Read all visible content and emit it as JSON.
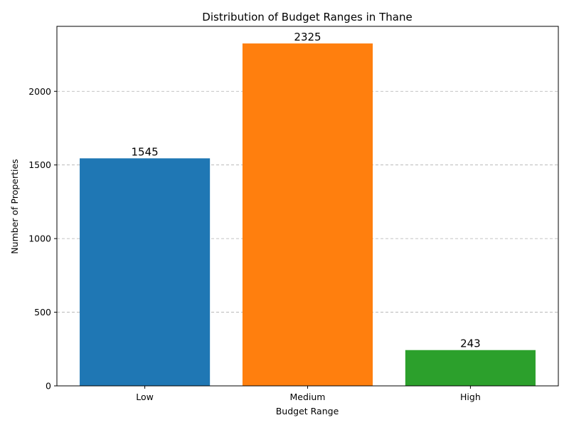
{
  "chart_data": {
    "type": "bar",
    "title": "Distribution of Budget Ranges in Thane",
    "xlabel": "Budget Range",
    "ylabel": "Number of Properties",
    "categories": [
      "Low",
      "Medium",
      "High"
    ],
    "values": [
      1545,
      2325,
      243
    ],
    "value_labels": [
      "1545",
      "2325",
      "243"
    ],
    "colors": [
      "#1f77b4",
      "#ff7f0e",
      "#2ca02c"
    ],
    "ylim": [
      0,
      2441.25
    ],
    "yticks": [
      0,
      500,
      1000,
      1500,
      2000
    ],
    "ytick_labels": [
      "0",
      "500",
      "1000",
      "1500",
      "2000"
    ],
    "grid": "y-dashed",
    "legend": "none"
  }
}
